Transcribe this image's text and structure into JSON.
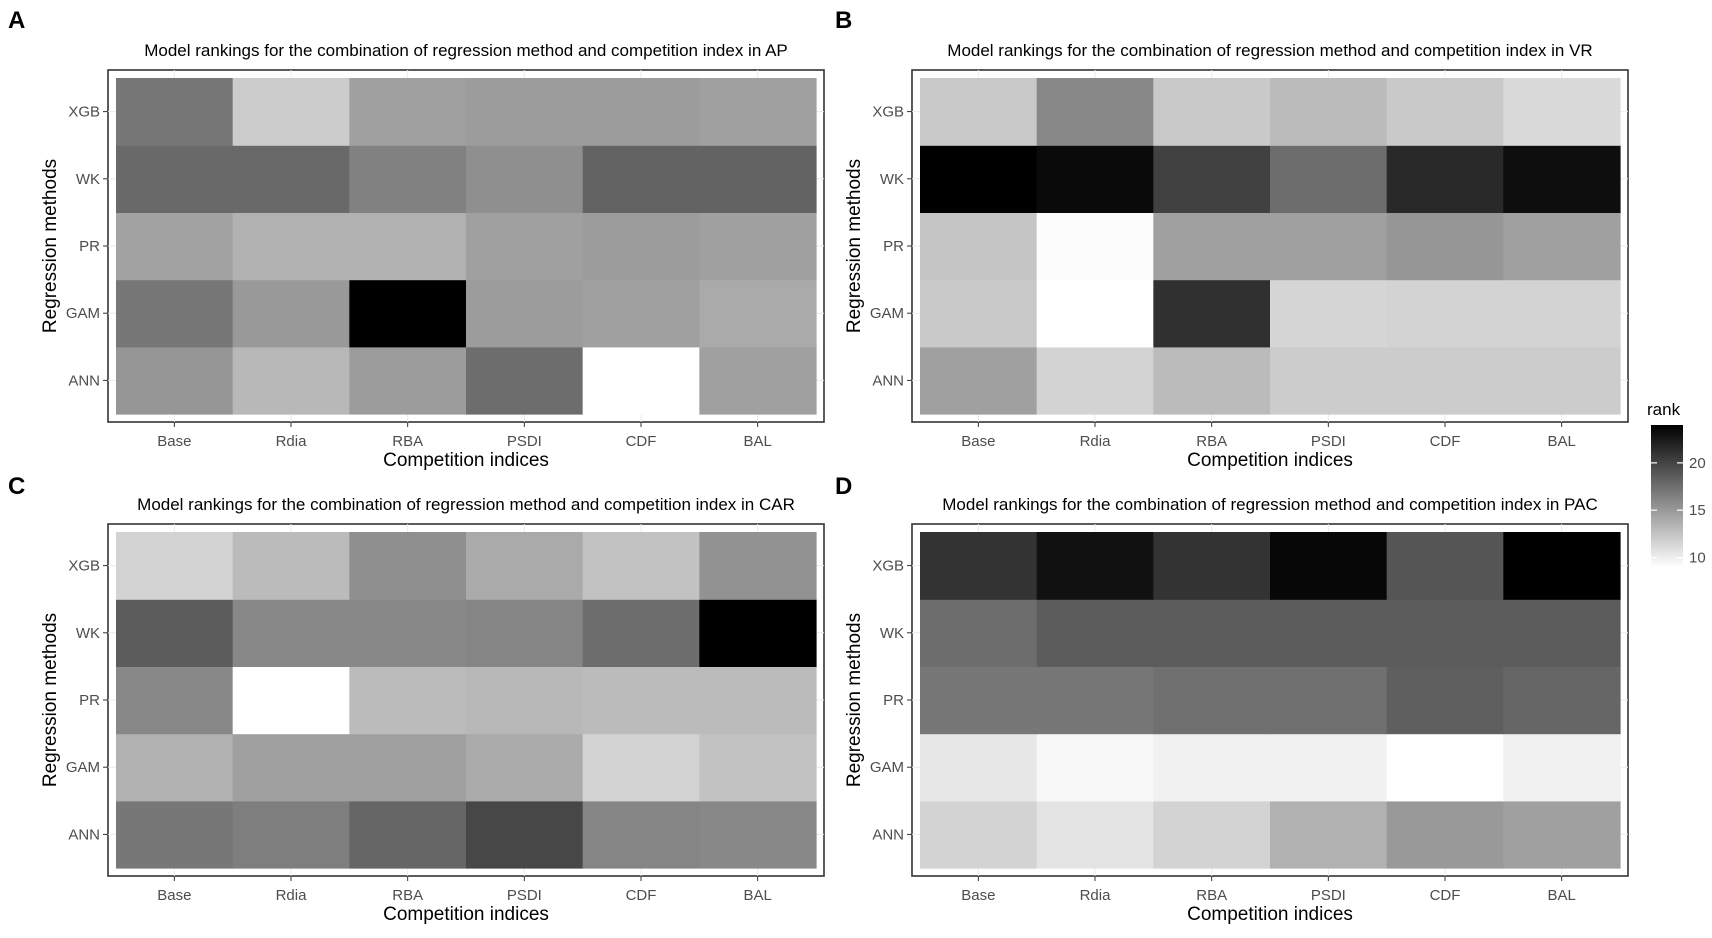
{
  "colorbar": {
    "title": "rank",
    "ticks": [
      10,
      15,
      20
    ],
    "min": 9,
    "max": 24,
    "low_color": "#ffffff",
    "high_color": "#000000"
  },
  "chart_data": [
    {
      "type": "heatmap",
      "panel_label": "A",
      "title": "Model rankings for the combination of regression method and competition index in AP",
      "xlabel": "Competition indices",
      "ylabel": "Regression methods",
      "x": [
        "Base",
        "Rdia",
        "RBA",
        "PSDI",
        "CDF",
        "BAL"
      ],
      "y": [
        "ANN",
        "GAM",
        "PR",
        "WK",
        "XGB"
      ],
      "values": [
        [
          15.2,
          13.2,
          14.8,
          17.6,
          9.0,
          14.6
        ],
        [
          17.0,
          15.0,
          24.0,
          14.8,
          14.6,
          14.0
        ],
        [
          14.4,
          13.6,
          13.6,
          14.6,
          14.8,
          14.6
        ],
        [
          17.8,
          17.8,
          16.4,
          15.6,
          18.2,
          18.2
        ],
        [
          17.0,
          12.0,
          14.6,
          14.8,
          14.8,
          14.6
        ]
      ]
    },
    {
      "type": "heatmap",
      "panel_label": "B",
      "title": "Model rankings for the combination of regression method and competition index in VR",
      "xlabel": "Competition indices",
      "ylabel": "Regression methods",
      "x": [
        "Base",
        "Rdia",
        "RBA",
        "PSDI",
        "CDF",
        "BAL"
      ],
      "y": [
        "ANN",
        "GAM",
        "PR",
        "WK",
        "XGB"
      ],
      "values": [
        [
          14.6,
          11.6,
          13.0,
          12.0,
          12.0,
          12.0
        ],
        [
          12.2,
          9.0,
          21.2,
          11.4,
          11.6,
          11.6
        ],
        [
          12.4,
          9.2,
          14.6,
          14.6,
          15.2,
          14.6
        ],
        [
          24.0,
          23.4,
          20.2,
          17.6,
          21.6,
          23.2
        ],
        [
          12.2,
          16.0,
          12.2,
          13.0,
          12.2,
          11.2
        ]
      ]
    },
    {
      "type": "heatmap",
      "panel_label": "C",
      "title": "Model rankings for the combination of regression method and competition index in CAR",
      "xlabel": "Competition indices",
      "ylabel": "Regression methods",
      "x": [
        "Base",
        "Rdia",
        "RBA",
        "PSDI",
        "CDF",
        "BAL"
      ],
      "y": [
        "ANN",
        "GAM",
        "PR",
        "WK",
        "XGB"
      ],
      "values": [
        [
          17.0,
          16.6,
          18.0,
          19.8,
          16.2,
          16.0
        ],
        [
          13.6,
          14.6,
          14.6,
          14.0,
          11.6,
          12.6
        ],
        [
          16.0,
          9.0,
          13.0,
          13.2,
          13.0,
          13.0
        ],
        [
          18.6,
          16.0,
          16.0,
          16.2,
          17.6,
          24.0
        ],
        [
          11.6,
          13.0,
          15.6,
          14.0,
          12.6,
          15.4
        ]
      ]
    },
    {
      "type": "heatmap",
      "panel_label": "D",
      "title": "Model rankings for the combination of regression method and competition index in PAC",
      "xlabel": "Competition indices",
      "ylabel": "Regression methods",
      "x": [
        "Base",
        "Rdia",
        "RBA",
        "PSDI",
        "CDF",
        "BAL"
      ],
      "y": [
        "ANN",
        "GAM",
        "PR",
        "WK",
        "XGB"
      ],
      "values": [
        [
          11.6,
          10.6,
          11.6,
          13.6,
          15.0,
          14.6
        ],
        [
          10.4,
          9.4,
          9.8,
          9.8,
          9.0,
          9.8
        ],
        [
          17.0,
          17.0,
          17.4,
          17.4,
          18.4,
          18.0
        ],
        [
          17.6,
          18.6,
          18.6,
          18.6,
          18.6,
          18.6
        ],
        [
          21.0,
          23.0,
          21.0,
          23.6,
          19.0,
          24.0
        ]
      ]
    }
  ]
}
